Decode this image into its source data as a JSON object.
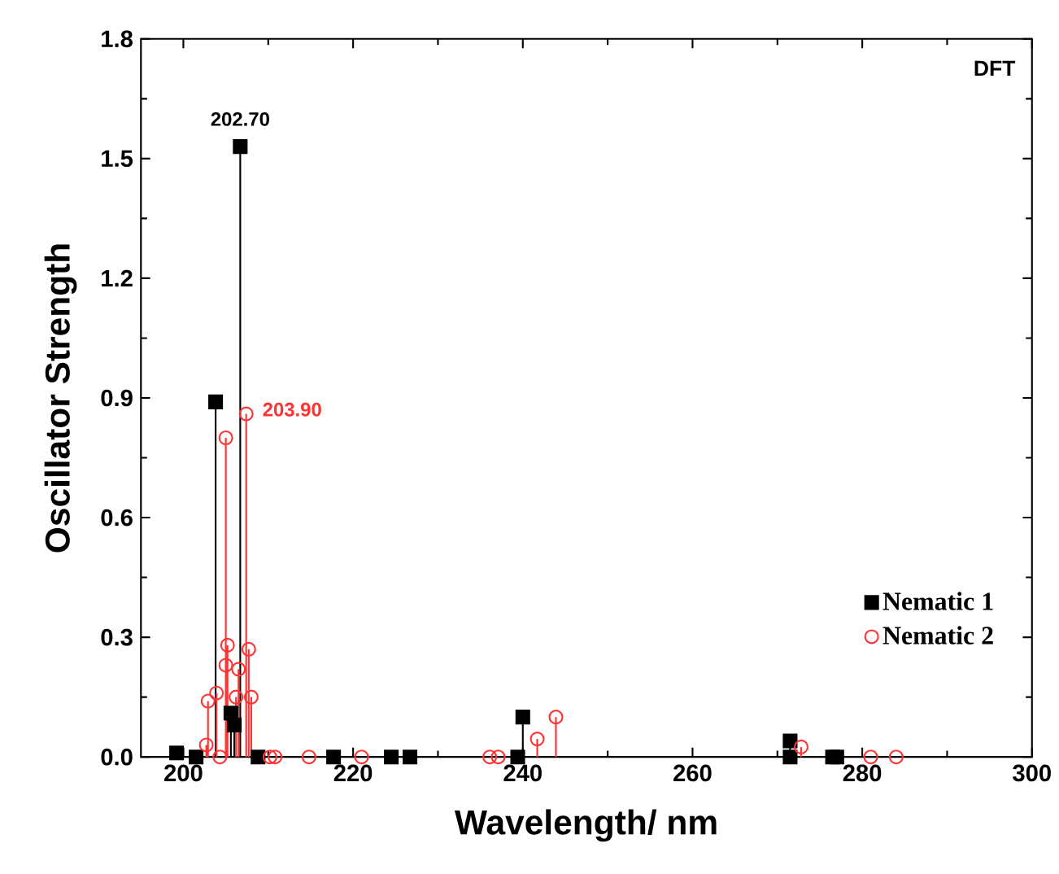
{
  "chart_data": {
    "type": "lollipop",
    "xlabel": "Wavelength/ nm",
    "ylabel": "Oscillator Strength",
    "xlim": [
      195,
      300
    ],
    "xticks": [
      200,
      220,
      240,
      260,
      280,
      300
    ],
    "ylim": [
      0,
      1.8
    ],
    "yticks": [
      {
        "value": 0,
        "label": "0.0"
      },
      {
        "value": 0.3,
        "label": "0.3"
      },
      {
        "value": 0.6,
        "label": "0.6"
      },
      {
        "value": 0.9,
        "label": "0.9"
      },
      {
        "value": 1.2,
        "label": "1.2"
      },
      {
        "value": 1.5,
        "label": "1.5"
      },
      {
        "value": 1.8,
        "label": "1.8"
      }
    ],
    "grid": false,
    "legend": "bottom right",
    "series": [
      {
        "name": "Nematic 1",
        "color": "#000000",
        "marker": "square",
        "x": [
          199.2,
          201.5,
          203.8,
          205.6,
          206.0,
          206.7,
          208.8,
          217.7,
          224.5,
          226.7,
          239.4,
          240.0,
          271.5,
          271.5,
          276.5,
          277.0
        ],
        "values": [
          0.01,
          0.0,
          0.89,
          0.11,
          0.08,
          1.53,
          0.0,
          0.0,
          0.0,
          0.0,
          0.0,
          0.1,
          0.0,
          0.04,
          0.0,
          0.0
        ]
      },
      {
        "name": "Nematic 2",
        "color": "#ff3333",
        "marker": "circle",
        "x": [
          202.7,
          202.9,
          203.9,
          204.3,
          205.0,
          205.0,
          205.2,
          206.2,
          206.5,
          207.4,
          207.7,
          208.0,
          210.2,
          210.8,
          214.8,
          221.0,
          236.1,
          237.1,
          241.7,
          243.9,
          272.8,
          281.0,
          284.0
        ],
        "values": [
          0.03,
          0.14,
          0.16,
          0.0,
          0.8,
          0.23,
          0.28,
          0.15,
          0.22,
          0.86,
          0.27,
          0.15,
          0.0,
          0.0,
          0.0,
          0.0,
          0.0,
          0.0,
          0.045,
          0.1,
          0.025,
          0.0,
          0.0
        ]
      }
    ],
    "annotations": [
      "DFT",
      {
        "text": "202.70",
        "x": 206.7,
        "y": 1.53
      },
      {
        "text": "203.90",
        "x": 207.4,
        "y": 0.86
      }
    ]
  }
}
